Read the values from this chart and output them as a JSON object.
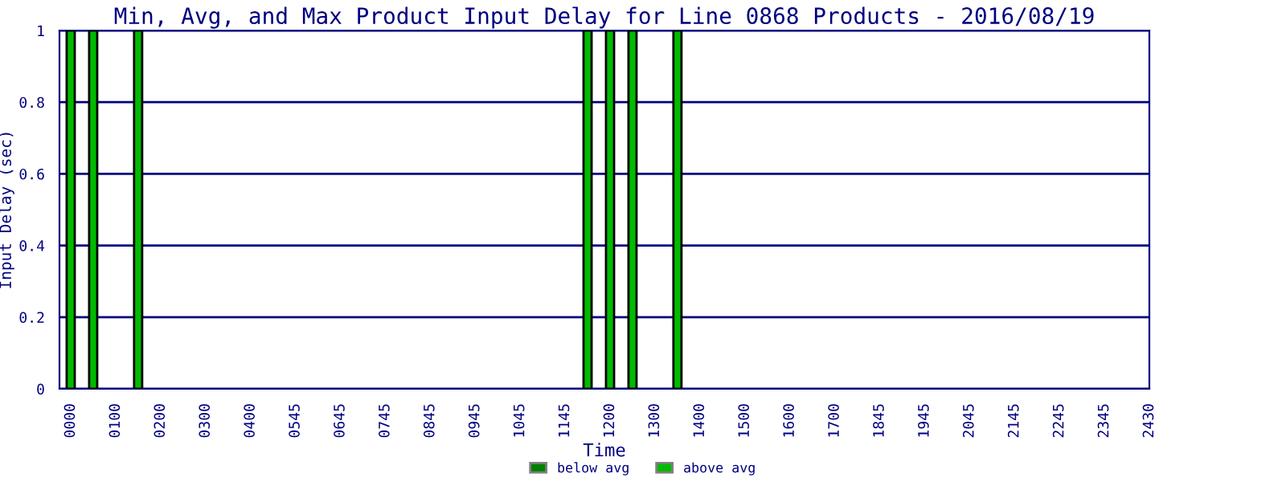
{
  "chart_data": {
    "type": "bar",
    "title": "Min, Avg, and Max Product Input Delay for Line 0868 Products - 2016/08/19",
    "xlabel": "Time",
    "ylabel": "Input Delay (sec)",
    "categories": [
      "0000",
      null,
      "0100",
      null,
      "0200",
      null,
      "0300",
      null,
      "0400",
      null,
      "0545",
      null,
      "0645",
      null,
      "0745",
      null,
      "0845",
      null,
      "0945",
      null,
      "1045",
      null,
      "1145",
      null,
      "1200",
      null,
      "1300",
      null,
      "1400",
      null,
      "1500",
      null,
      "1600",
      null,
      "1700",
      null,
      "1845",
      null,
      "1945",
      null,
      "2045",
      null,
      "2145",
      null,
      "2245",
      null,
      "2345",
      null,
      "2430"
    ],
    "series": [
      {
        "name": "below avg",
        "color": "#008000",
        "values": [
          null,
          null,
          null,
          null,
          null,
          null,
          null,
          null,
          null,
          null,
          null,
          null,
          null,
          null,
          null,
          null,
          null,
          null,
          null,
          null,
          null,
          null,
          null,
          null,
          null,
          null,
          null,
          null,
          null,
          null,
          null,
          null,
          null,
          null,
          null,
          null,
          null,
          null,
          null,
          null,
          null,
          null,
          null,
          null,
          null,
          null,
          null,
          null,
          null
        ]
      },
      {
        "name": "above avg",
        "color": "#00bb00",
        "values": [
          1,
          1,
          null,
          1,
          null,
          null,
          null,
          null,
          null,
          null,
          null,
          null,
          null,
          null,
          null,
          null,
          null,
          null,
          null,
          null,
          null,
          null,
          null,
          1,
          1,
          1,
          null,
          1,
          null,
          null,
          null,
          null,
          null,
          null,
          null,
          null,
          null,
          null,
          null,
          null,
          null,
          null,
          null,
          null,
          null,
          null,
          null,
          null,
          null
        ]
      }
    ],
    "ylim": [
      0,
      1
    ],
    "yticks": [
      0,
      0.2,
      0.4,
      0.6,
      0.8,
      1
    ],
    "grid": "y",
    "legend": "bottom"
  }
}
